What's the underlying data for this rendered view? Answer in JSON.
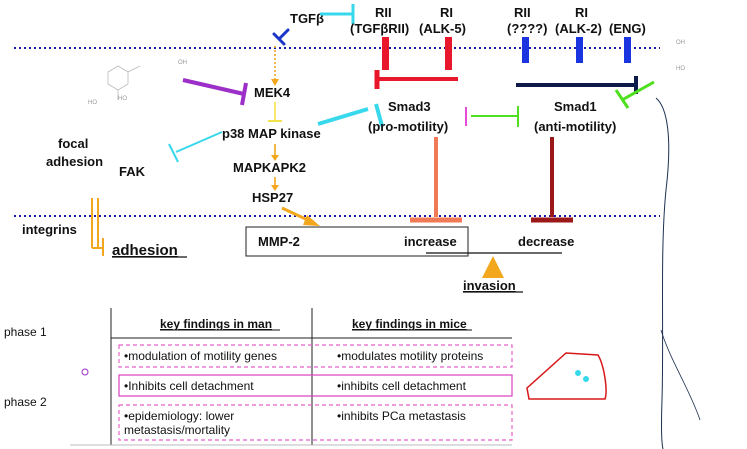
{
  "receptors": {
    "tgfb": "TGFβ",
    "rii_left": "RII",
    "rii_left_sub": "(TGFβRII)",
    "ri_left": "RI",
    "ri_left_sub": "(ALK-5)",
    "rii_right": "RII",
    "rii_right_sub": "(????)",
    "ri_right": "RI",
    "ri_right_sub": "(ALK-2)",
    "eng": "(ENG)"
  },
  "pathway": {
    "mek4": "MEK4",
    "p38": "p38 MAP kinase",
    "mapkapk2": "MAPKAPK2",
    "hsp27": "HSP27",
    "focal_adhesion_1": "focal",
    "focal_adhesion_2": "adhesion",
    "fak": "FAK",
    "integrins": "integrins",
    "adhesion": "adhesion",
    "smad3": "Smad3",
    "smad3_sub": "(pro-motility)",
    "smad1": "Smad1",
    "smad1_sub": "(anti-motility)",
    "mmp2": "MMP-2",
    "increase": "increase",
    "decrease": "decrease",
    "invasion": "invasion"
  },
  "table": {
    "col_man": "key findings in man",
    "col_mice": "key findings in mice",
    "phase1": "phase 1",
    "phase2": "phase 2",
    "row1_man": "•modulation of motility genes",
    "row1_mice": "•modulates motility proteins",
    "row2_man": "•Inhibits cell detachment",
    "row2_mice": "•inhibits cell detachment",
    "row3_man_1": "•epidemiology: lower",
    "row3_man_2": "metastasis/mortality",
    "row3_mice": "•inhibits PCa metastasis"
  },
  "colors": {
    "membrane": "#1a1ab0",
    "tgfb": "#1a35c8",
    "alk5": "#e8172b",
    "alk2": "#1a35e0",
    "smad_link": "#0d1a4a",
    "cyan": "#38d8ec",
    "purple": "#9b2fc7",
    "green": "#4ee01e",
    "magenta": "#e84ad8",
    "orange": "#f2a71c",
    "salmon": "#f07a55",
    "darkred": "#9a1818",
    "yellow": "#f2e34a",
    "dashed_box": "#e862c8",
    "solid_box": "#d840c0"
  }
}
